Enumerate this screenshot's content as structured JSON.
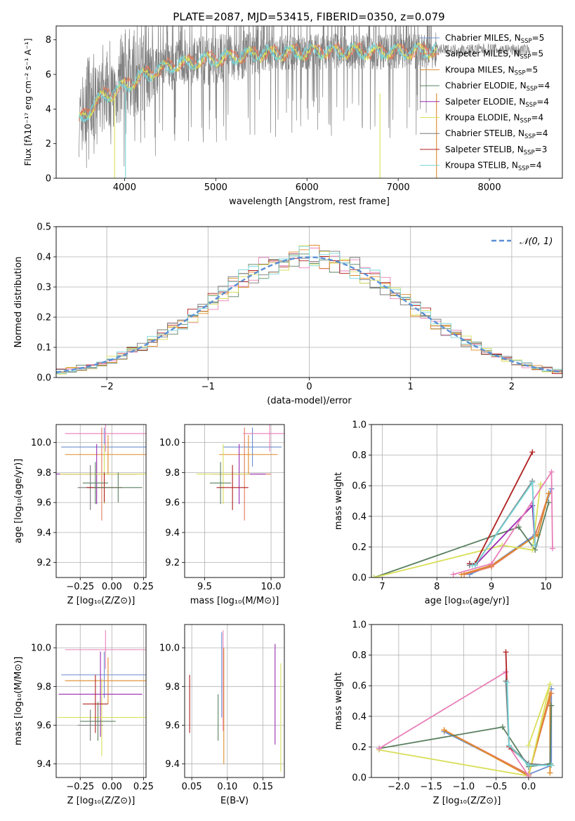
{
  "title": "PLATE=2087, MJD=53415, FIBERID=0350, z=0.079",
  "colors": {
    "Chabrier MILES": "#6a8fd0",
    "Salpeter MILES": "#e47a5a",
    "Kroupa MILES": "#e08a2a",
    "Chabrier ELODIE": "#5a8060",
    "Salpeter ELODIE": "#9a2ab0",
    "Kroupa ELODIE": "#d9df5a",
    "Chabrier STELIB": "#777777",
    "Salpeter STELIB": "#b01f1f",
    "Kroupa STELIB": "#77d6d9",
    "Pink": "#e87fb8",
    "Normal": "#5b8fd4"
  },
  "chart_data": [
    {
      "id": "spectrum",
      "type": "line",
      "xlabel": "wavelength [Angstrom, rest frame]",
      "ylabel": "Flux [fλ10⁻¹⁷ erg cm⁻² s⁻¹ A⁻¹]",
      "xlim": [
        3250,
        8800
      ],
      "ylim": [
        0,
        8.8
      ],
      "xticks": [
        4000,
        5000,
        6000,
        7000,
        8000
      ],
      "yticks": [
        0,
        2,
        4,
        6,
        8
      ],
      "legend_position": "right",
      "legend": [
        {
          "label": "Chabrier MILES, N",
          "sub": "SSP",
          "suffix": "=5",
          "color": "#6a8fd0"
        },
        {
          "label": "Salpeter MILES, N",
          "sub": "SSP",
          "suffix": "=5",
          "color": "#e47a5a"
        },
        {
          "label": "Kroupa MILES, N",
          "sub": "SSP",
          "suffix": "=5",
          "color": "#e08a2a"
        },
        {
          "label": "Chabrier ELODIE, N",
          "sub": "SSP",
          "suffix": "=4",
          "color": "#5a8060"
        },
        {
          "label": "Salpeter ELODIE, N",
          "sub": "SSP",
          "suffix": "=4",
          "color": "#9a2ab0"
        },
        {
          "label": "Kroupa ELODIE, N",
          "sub": "SSP",
          "suffix": "=4",
          "color": "#d9df5a"
        },
        {
          "label": "Chabrier STELIB, N",
          "sub": "SSP",
          "suffix": "=4",
          "color": "#777777"
        },
        {
          "label": "Salpeter STELIB, N",
          "sub": "SSP",
          "suffix": "=3",
          "color": "#b01f1f"
        },
        {
          "label": "Kroupa STELIB, N",
          "sub": "SSP",
          "suffix": "=4",
          "color": "#77d6d9"
        }
      ],
      "continuum": [
        [
          3500,
          3.3
        ],
        [
          3600,
          3.8
        ],
        [
          3700,
          4.5
        ],
        [
          3800,
          4.8
        ],
        [
          3900,
          5.0
        ],
        [
          4000,
          5.3
        ],
        [
          4200,
          5.9
        ],
        [
          4500,
          6.5
        ],
        [
          5000,
          6.9
        ],
        [
          5500,
          7.2
        ],
        [
          6000,
          7.3
        ],
        [
          6500,
          7.35
        ],
        [
          7000,
          7.3
        ],
        [
          7500,
          7.4
        ],
        [
          8000,
          7.45
        ],
        [
          8400,
          7.4
        ]
      ]
    },
    {
      "id": "residuals",
      "type": "step",
      "xlabel": "(data-model)/error",
      "ylabel": "Normed distribution",
      "xlim": [
        -2.5,
        2.5
      ],
      "ylim": [
        0,
        0.5
      ],
      "xticks": [
        -2,
        -1,
        0,
        1,
        2
      ],
      "xtick_labels": [
        "−2",
        "−1",
        "0",
        "1",
        "2"
      ],
      "yticks": [
        0.0,
        0.1,
        0.2,
        0.3,
        0.4,
        0.5
      ],
      "grid": true,
      "legend_position": "top-right",
      "legend_label": "𝒩(0, 1)"
    },
    {
      "id": "age-vs-Z",
      "type": "errorbar",
      "xlabel": "Z [log₁₀(Z/Z⊙)]",
      "ylabel": "age  [log₁₀(age/yr)]",
      "xlim": [
        -0.44,
        0.27
      ],
      "ylim": [
        9.1,
        10.12
      ],
      "xticks": [
        -0.25,
        0.0,
        0.25
      ],
      "xtick_labels": [
        "−0.25",
        "0.00",
        "0.25"
      ],
      "yticks": [
        9.2,
        9.4,
        9.6,
        9.8,
        10.0
      ],
      "grid": true,
      "points": [
        {
          "x": -0.06,
          "y": 9.97,
          "xerr": 0.34,
          "yerr": 0.13,
          "color": "#6a8fd0"
        },
        {
          "x": -0.03,
          "y": 9.92,
          "xerr": 0.34,
          "yerr": 0.13,
          "color": "#e08a2a"
        },
        {
          "x": -0.05,
          "y": 10.06,
          "xerr": 0.32,
          "yerr": 0.12,
          "color": "#e87fb8"
        },
        {
          "x": -0.08,
          "y": 9.79,
          "xerr": 0.33,
          "yerr": 0.31,
          "color": "#e47a5a"
        },
        {
          "x": -0.12,
          "y": 9.79,
          "xerr": 0.32,
          "yerr": 0.2,
          "color": "#9a2ab0"
        },
        {
          "x": -0.06,
          "y": 9.79,
          "xerr": 0.35,
          "yerr": 0.2,
          "color": "#d9df5a"
        },
        {
          "x": -0.13,
          "y": 9.73,
          "xerr": 0.1,
          "yerr": 0.14,
          "color": "#5a8060"
        },
        {
          "x": -0.17,
          "y": 9.7,
          "xerr": 0.1,
          "yerr": 0.15,
          "color": "#777777"
        },
        {
          "x": -0.06,
          "y": 9.7,
          "xerr": 0.14,
          "yerr": 0.1,
          "color": "#b01f1f"
        },
        {
          "x": 0.05,
          "y": 9.7,
          "xerr": 0.19,
          "yerr": 0.1,
          "color": "#5a8060"
        }
      ]
    },
    {
      "id": "age-vs-mass",
      "type": "errorbar",
      "xlabel": "mass [log₁₀(M/M⊙)]",
      "ylabel": "",
      "xlim": [
        9.35,
        10.1
      ],
      "ylim": [
        9.1,
        10.12
      ],
      "xticks": [
        9.5,
        10.0
      ],
      "xtick_labels": [
        "9.5",
        "10.0"
      ],
      "yticks": [
        9.2,
        9.4,
        9.6,
        9.8,
        10.0
      ],
      "grid": true,
      "points": [
        {
          "x": 9.86,
          "y": 9.97,
          "xerr": 0.22,
          "yerr": 0.13,
          "color": "#6a8fd0"
        },
        {
          "x": 9.83,
          "y": 9.92,
          "xerr": 0.22,
          "yerr": 0.13,
          "color": "#e08a2a"
        },
        {
          "x": 9.99,
          "y": 10.06,
          "xerr": 0.2,
          "yerr": 0.12,
          "color": "#e87fb8"
        },
        {
          "x": 9.8,
          "y": 9.79,
          "xerr": 0.2,
          "yerr": 0.31,
          "color": "#e47a5a"
        },
        {
          "x": 9.76,
          "y": 9.79,
          "xerr": 0.2,
          "yerr": 0.2,
          "color": "#9a2ab0"
        },
        {
          "x": 9.64,
          "y": 9.79,
          "xerr": 0.2,
          "yerr": 0.2,
          "color": "#d9df5a"
        },
        {
          "x": 9.62,
          "y": 9.73,
          "xerr": 0.08,
          "yerr": 0.14,
          "color": "#5a8060"
        },
        {
          "x": 9.71,
          "y": 9.7,
          "xerr": 0.12,
          "yerr": 0.15,
          "color": "#b01f1f"
        }
      ]
    },
    {
      "id": "weight-vs-age",
      "type": "line",
      "xlabel": "age  [log₁₀(age/yr)]",
      "ylabel": "mass weight",
      "xlim": [
        6.8,
        10.3
      ],
      "ylim": [
        0.0,
        1.0
      ],
      "xticks": [
        7,
        8,
        9,
        10
      ],
      "yticks": [
        0.0,
        0.2,
        0.4,
        0.6,
        0.8,
        1.0
      ],
      "grid": true,
      "series": [
        {
          "color": "#6a8fd0",
          "x": [
            8.6,
            9.0,
            9.8,
            10.1
          ],
          "y": [
            0.02,
            0.08,
            0.28,
            0.58
          ]
        },
        {
          "color": "#e47a5a",
          "x": [
            8.5,
            9.0,
            9.8,
            10.05
          ],
          "y": [
            0.02,
            0.07,
            0.27,
            0.55
          ]
        },
        {
          "color": "#e08a2a",
          "x": [
            8.45,
            9.0,
            9.85,
            10.05
          ],
          "y": [
            0.02,
            0.08,
            0.28,
            0.55
          ]
        },
        {
          "color": "#5a8060",
          "x": [
            6.85,
            9.5,
            9.8,
            10.05
          ],
          "y": [
            0.0,
            0.33,
            0.18,
            0.49
          ]
        },
        {
          "color": "#d9df5a",
          "x": [
            6.85,
            9.2,
            9.75,
            9.9
          ],
          "y": [
            0.0,
            0.21,
            0.18,
            0.61
          ]
        },
        {
          "color": "#9a2ab0",
          "x": [
            8.6,
            8.7,
            9.75,
            9.8
          ],
          "y": [
            0.09,
            0.08,
            0.47,
            0.21
          ]
        },
        {
          "color": "#b01f1f",
          "x": [
            8.6,
            8.7,
            9.75
          ],
          "y": [
            0.09,
            0.09,
            0.82
          ]
        },
        {
          "color": "#e87fb8",
          "x": [
            8.3,
            9.0,
            10.1,
            10.12
          ],
          "y": [
            0.02,
            0.09,
            0.69,
            0.19
          ]
        },
        {
          "color": "#777777",
          "x": [
            8.6,
            8.7,
            9.75,
            9.8
          ],
          "y": [
            0.08,
            0.08,
            0.63,
            0.21
          ]
        },
        {
          "color": "#77d6d9",
          "x": [
            8.65,
            8.7,
            9.75,
            9.8
          ],
          "y": [
            0.08,
            0.08,
            0.62,
            0.21
          ]
        }
      ]
    },
    {
      "id": "mass-vs-Z",
      "type": "errorbar",
      "xlabel": "Z [log₁₀(Z/Z⊙)]",
      "ylabel": "mass [log₁₀(M/M⊙)]",
      "xlim": [
        -0.44,
        0.27
      ],
      "ylim": [
        9.33,
        10.12
      ],
      "xticks": [
        -0.25,
        0.0,
        0.25
      ],
      "xtick_labels": [
        "−0.25",
        "0.00",
        "0.25"
      ],
      "yticks": [
        9.4,
        9.6,
        9.8,
        10.0
      ],
      "grid": true,
      "points": [
        {
          "x": -0.06,
          "y": 9.86,
          "xerr": 0.34,
          "yerr": 0.12,
          "color": "#6a8fd0"
        },
        {
          "x": -0.03,
          "y": 9.83,
          "xerr": 0.34,
          "yerr": 0.12,
          "color": "#e08a2a"
        },
        {
          "x": -0.05,
          "y": 9.99,
          "xerr": 0.32,
          "yerr": 0.1,
          "color": "#e87fb8"
        },
        {
          "x": -0.09,
          "y": 9.76,
          "xerr": 0.33,
          "yerr": 0.22,
          "color": "#9a2ab0"
        },
        {
          "x": -0.08,
          "y": 9.64,
          "xerr": 0.35,
          "yerr": 0.2,
          "color": "#d9df5a"
        },
        {
          "x": -0.13,
          "y": 9.71,
          "xerr": 0.1,
          "yerr": 0.15,
          "color": "#b01f1f"
        },
        {
          "x": -0.11,
          "y": 9.62,
          "xerr": 0.14,
          "yerr": 0.1,
          "color": "#5a8060"
        },
        {
          "x": -0.17,
          "y": 9.6,
          "xerr": 0.1,
          "yerr": 0.08,
          "color": "#777777"
        }
      ]
    },
    {
      "id": "mass-vs-ebv",
      "type": "errorbar",
      "xlabel": "E(B-V)",
      "ylabel": "",
      "xlim": [
        0.04,
        0.18
      ],
      "ylim": [
        9.33,
        10.12
      ],
      "xticks": [
        0.05,
        0.1,
        0.15
      ],
      "xtick_labels": [
        "0.05",
        "0.10",
        "0.15"
      ],
      "yticks": [
        9.4,
        9.6,
        9.8,
        10.0
      ],
      "grid": true,
      "points": [
        {
          "x": 0.047,
          "y": 9.71,
          "xerr": 0,
          "yerr": 0.15,
          "color": "#b01f1f"
        },
        {
          "x": 0.087,
          "y": 9.64,
          "xerr": 0,
          "yerr": 0.12,
          "color": "#5a8060"
        },
        {
          "x": 0.092,
          "y": 9.86,
          "xerr": 0,
          "yerr": 0.22,
          "color": "#6a8fd0"
        },
        {
          "x": 0.094,
          "y": 9.83,
          "xerr": 0,
          "yerr": 0.26,
          "color": "#e87fb8"
        },
        {
          "x": 0.095,
          "y": 9.7,
          "xerr": 0,
          "yerr": 0.3,
          "color": "#e08a2a"
        },
        {
          "x": 0.167,
          "y": 9.76,
          "xerr": 0,
          "yerr": 0.26,
          "color": "#9a2ab0"
        },
        {
          "x": 0.175,
          "y": 9.64,
          "xerr": 0,
          "yerr": 0.28,
          "color": "#d9df5a"
        }
      ]
    },
    {
      "id": "weight-vs-Z",
      "type": "line",
      "xlabel": "Z [log₁₀(Z/Z⊙)]",
      "ylabel": "mass weight",
      "xlim": [
        -2.42,
        0.52
      ],
      "ylim": [
        0.0,
        1.0
      ],
      "xticks": [
        -2.0,
        -1.5,
        -1.0,
        -0.5,
        0.0
      ],
      "xtick_labels": [
        "−2.0",
        "−1.5",
        "−1.0",
        "−0.5",
        "0.0"
      ],
      "yticks": [
        0.0,
        0.2,
        0.4,
        0.6,
        0.8,
        1.0
      ],
      "grid": true,
      "series": [
        {
          "color": "#6a8fd0",
          "x": [
            -1.3,
            0.0,
            0.35,
            0.35
          ],
          "y": [
            0.3,
            0.02,
            0.08,
            0.58
          ]
        },
        {
          "color": "#e47a5a",
          "x": [
            -1.3,
            0.0,
            0.35
          ],
          "y": [
            0.31,
            0.02,
            0.55
          ]
        },
        {
          "color": "#e08a2a",
          "x": [
            -1.3,
            0.0,
            0.33,
            0.33
          ],
          "y": [
            0.31,
            0.01,
            0.55,
            0.03
          ]
        },
        {
          "color": "#5a8060",
          "x": [
            -2.3,
            -0.4,
            0.0,
            0.33,
            0.35
          ],
          "y": [
            0.19,
            0.33,
            0.07,
            0.09,
            0.47
          ]
        },
        {
          "color": "#d9df5a",
          "x": [
            -2.3,
            0.0,
            0.33,
            0.0
          ],
          "y": [
            0.18,
            0.01,
            0.61,
            0.21
          ]
        },
        {
          "color": "#e87fb8",
          "x": [
            -2.3,
            -0.35,
            -0.3,
            0.0
          ],
          "y": [
            0.19,
            0.69,
            0.2,
            0.01
          ]
        },
        {
          "color": "#b01f1f",
          "x": [
            -0.35,
            -0.3,
            0.0
          ],
          "y": [
            0.82,
            0.2,
            0.09
          ]
        },
        {
          "color": "#777777",
          "x": [
            -0.35,
            -0.3,
            0.0,
            0.35
          ],
          "y": [
            0.63,
            0.21,
            0.09,
            0.08
          ]
        },
        {
          "color": "#77d6d9",
          "x": [
            -0.33,
            -0.3,
            0.0,
            0.35
          ],
          "y": [
            0.62,
            0.21,
            0.08,
            0.08
          ]
        }
      ]
    }
  ]
}
